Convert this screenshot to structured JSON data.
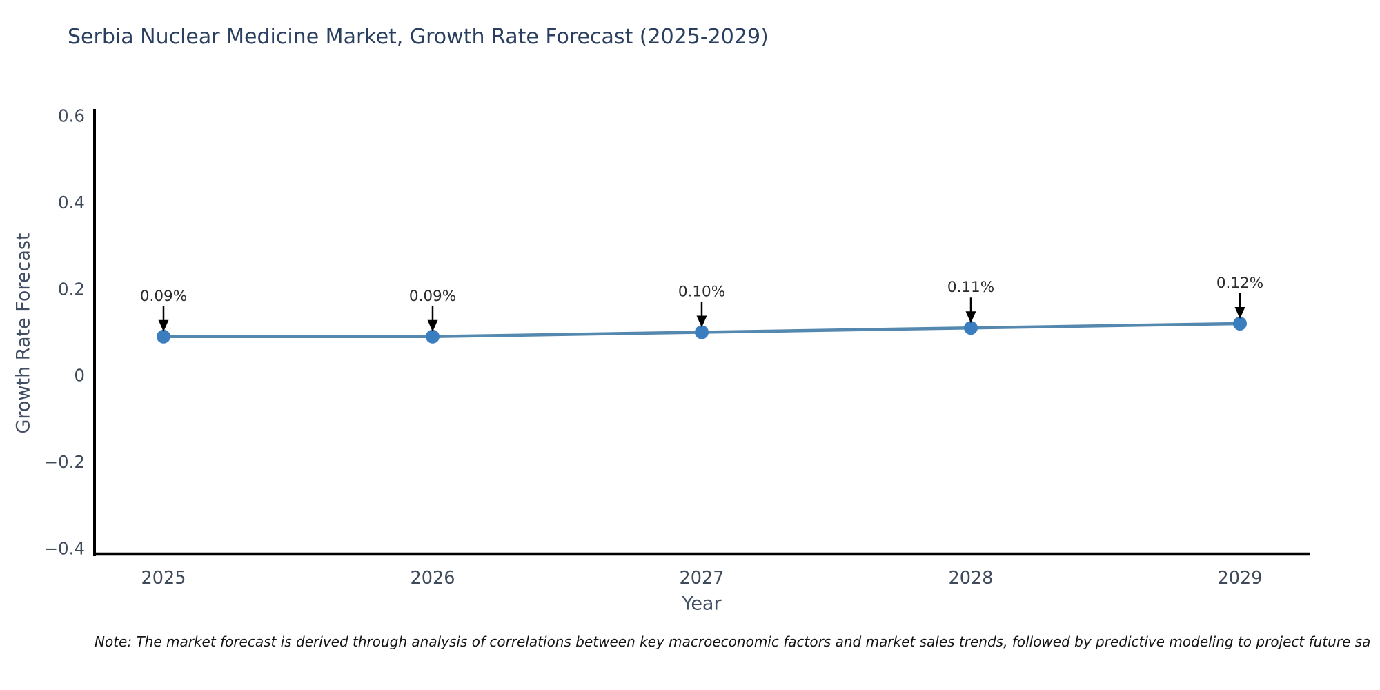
{
  "title": "Serbia Nuclear Medicine Market, Growth Rate Forecast (2025-2029)",
  "note": "Note: The market forecast is derived through analysis of correlations between key macroeconomic factors and market sales trends, followed by predictive modeling to project future sa",
  "chart_data": {
    "type": "line",
    "title": "Serbia Nuclear Medicine Market, Growth Rate Forecast (2025-2029)",
    "xlabel": "Year",
    "ylabel": "Growth Rate Forecast",
    "categories": [
      "2025",
      "2026",
      "2027",
      "2028",
      "2029"
    ],
    "series": [
      {
        "name": "Growth Rate Forecast",
        "values": [
          0.09,
          0.09,
          0.1,
          0.11,
          0.12
        ],
        "point_labels": [
          "0.09%",
          "0.09%",
          "0.10%",
          "0.11%",
          "0.12%"
        ]
      }
    ],
    "ylim": [
      -0.4,
      0.6
    ],
    "yticks": [
      0.6,
      0.4,
      0.2,
      0,
      -0.2,
      -0.4
    ],
    "ytick_labels": [
      "0.6",
      "0.4",
      "0.2",
      "0",
      "−0.2",
      "−0.4"
    ],
    "grid": false,
    "legend_position": "none",
    "annotations_have_arrows": true,
    "colors": {
      "line": "#5488ae",
      "marker": "#3a7ebf",
      "axis": "#000000",
      "tick_label": "#3f4a5a",
      "axis_title": "#414d63",
      "title": "#2a3f5f",
      "annotation_text": "#2b2b2b",
      "annotation_arrow": "#000000",
      "background": "#ffffff"
    }
  }
}
